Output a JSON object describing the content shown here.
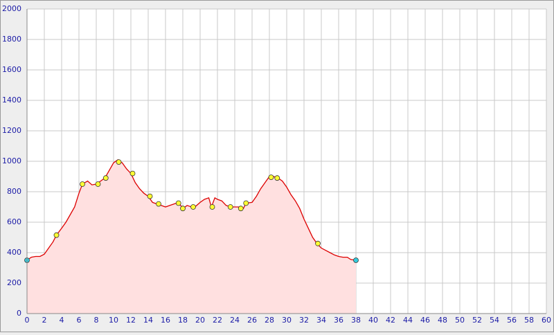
{
  "chart_data": {
    "type": "area",
    "x": [
      0,
      0.5,
      1,
      1.5,
      2,
      2.5,
      3,
      3.4,
      4,
      4.5,
      5,
      5.5,
      6,
      6.4,
      7,
      7.5,
      8,
      8.5,
      9,
      9.5,
      10,
      10.5,
      11,
      11.5,
      12,
      12.5,
      13,
      13.5,
      14,
      14.5,
      15,
      15.5,
      16,
      16.5,
      17,
      17.5,
      18,
      18.5,
      19,
      19.5,
      20,
      20.5,
      21,
      21.3,
      21.7,
      22,
      22.5,
      23,
      23.5,
      24,
      24.5,
      25,
      25.3,
      26,
      26.5,
      27,
      27.5,
      28,
      28.5,
      29,
      29.5,
      30,
      30.5,
      31,
      31.5,
      32,
      32.5,
      33,
      33.5,
      34,
      34.5,
      35,
      35.5,
      36,
      36.5,
      37,
      37.4,
      38
    ],
    "values": [
      350,
      370,
      375,
      375,
      390,
      430,
      470,
      515,
      560,
      600,
      650,
      700,
      790,
      850,
      870,
      845,
      850,
      870,
      890,
      940,
      990,
      1010,
      990,
      950,
      920,
      860,
      820,
      790,
      770,
      730,
      720,
      710,
      700,
      710,
      720,
      730,
      690,
      710,
      700,
      705,
      730,
      750,
      760,
      700,
      760,
      750,
      740,
      710,
      700,
      700,
      700,
      690,
      725,
      730,
      770,
      820,
      860,
      900,
      900,
      890,
      870,
      830,
      780,
      740,
      690,
      620,
      560,
      500,
      460,
      430,
      415,
      400,
      385,
      375,
      370,
      370,
      355,
      350
    ],
    "color": "#dd0000",
    "fill": "#ffe0e0",
    "waypoints": {
      "color": "#ffff33",
      "x": [
        3.4,
        6.4,
        8.2,
        9.1,
        10.6,
        12.2,
        14.2,
        15.2,
        17.5,
        18,
        19.2,
        21.4,
        23.5,
        24.7,
        25.3,
        28.2,
        28.9,
        33.6
      ],
      "values": [
        515,
        850,
        850,
        890,
        995,
        920,
        770,
        720,
        725,
        690,
        700,
        700,
        700,
        690,
        725,
        895,
        890,
        460
      ]
    },
    "endpoints": {
      "color": "#33ccdd",
      "x": [
        0,
        38
      ],
      "values": [
        350,
        350
      ]
    },
    "xlim": [
      0,
      60
    ],
    "xticks": [
      0,
      2,
      4,
      6,
      8,
      10,
      12,
      14,
      16,
      18,
      20,
      22,
      24,
      26,
      28,
      30,
      32,
      34,
      36,
      38,
      40,
      42,
      44,
      46,
      48,
      50,
      52,
      54,
      56,
      58,
      60
    ],
    "ylim": [
      0,
      2000
    ],
    "yticks": [
      0,
      200,
      400,
      600,
      800,
      1000,
      1200,
      1400,
      1600,
      1800,
      2000
    ],
    "grid": true
  }
}
